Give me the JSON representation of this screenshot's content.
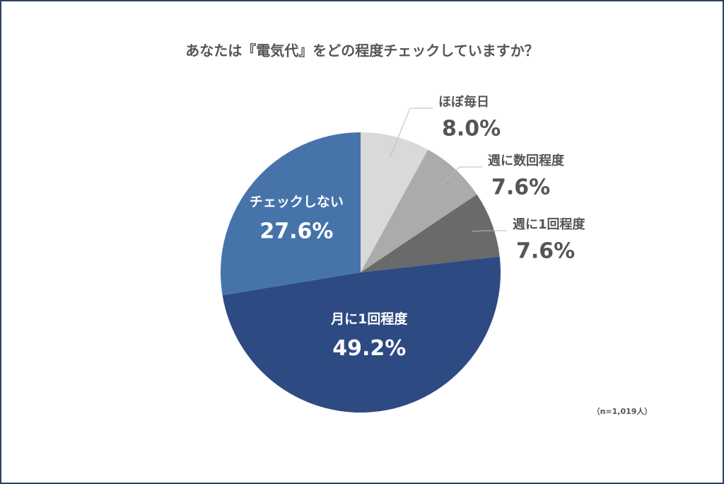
{
  "chart_data": {
    "type": "pie",
    "title": "あなたは『電気代』をどの程度チェックしていますか？",
    "categories": [
      "ほぼ毎日",
      "週に数回程度",
      "週に1回程度",
      "月に1回程度",
      "チェックしない"
    ],
    "values": [
      8.0,
      7.6,
      7.6,
      49.2,
      27.6
    ],
    "value_labels": [
      "8.0%",
      "7.6%",
      "7.6%",
      "49.2%",
      "27.6%"
    ],
    "colors": [
      "#d9d9d9",
      "#ababab",
      "#6a6a6a",
      "#2d4a82",
      "#4674aa"
    ],
    "note": "（n=1,019人）"
  }
}
